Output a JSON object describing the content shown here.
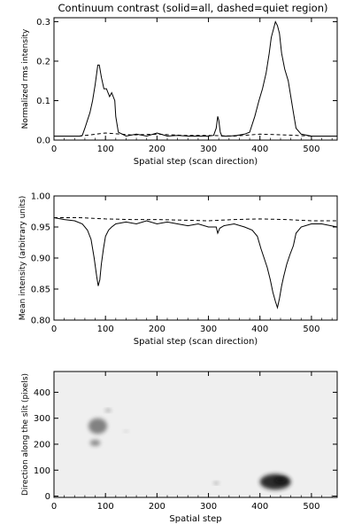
{
  "chart_data": [
    {
      "type": "line",
      "title": "Continuum contrast (solid=all, dashed=quiet region)",
      "xlabel": "Spatial step (scan direction)",
      "ylabel": "Normalized rms intensity",
      "xlim": [
        0,
        550
      ],
      "ylim": [
        0,
        0.31
      ],
      "xticks": [
        "0",
        "100",
        "200",
        "300",
        "400",
        "500"
      ],
      "yticks": [
        "0.0",
        "0.1",
        "0.2",
        "0.3"
      ],
      "xtick_values": [
        0,
        100,
        200,
        300,
        400,
        500
      ],
      "ytick_values": [
        0.0,
        0.1,
        0.2,
        0.3
      ],
      "series": [
        {
          "style": "solid",
          "x": [
            0,
            20,
            40,
            50,
            55,
            60,
            65,
            70,
            75,
            80,
            85,
            88,
            92,
            97,
            102,
            108,
            112,
            118,
            120,
            125,
            140,
            160,
            180,
            200,
            220,
            240,
            260,
            280,
            300,
            310,
            315,
            318,
            320,
            323,
            326,
            330,
            340,
            355,
            370,
            380,
            390,
            398,
            405,
            412,
            418,
            422,
            426,
            430,
            434,
            438,
            442,
            448,
            455,
            460,
            465,
            470,
            480,
            500,
            520,
            550
          ],
          "y": [
            0.01,
            0.01,
            0.01,
            0.01,
            0.012,
            0.03,
            0.05,
            0.07,
            0.1,
            0.14,
            0.19,
            0.19,
            0.16,
            0.13,
            0.13,
            0.11,
            0.12,
            0.1,
            0.06,
            0.02,
            0.01,
            0.015,
            0.01,
            0.018,
            0.01,
            0.012,
            0.01,
            0.01,
            0.01,
            0.012,
            0.03,
            0.06,
            0.05,
            0.02,
            0.01,
            0.01,
            0.01,
            0.012,
            0.015,
            0.02,
            0.06,
            0.1,
            0.13,
            0.17,
            0.22,
            0.26,
            0.28,
            0.3,
            0.29,
            0.27,
            0.22,
            0.18,
            0.15,
            0.11,
            0.07,
            0.03,
            0.015,
            0.01,
            0.01,
            0.01
          ]
        },
        {
          "style": "dashed",
          "x": [
            0,
            50,
            100,
            150,
            200,
            250,
            300,
            350,
            400,
            450,
            500,
            550
          ],
          "y": [
            0.01,
            0.01,
            0.018,
            0.013,
            0.015,
            0.012,
            0.012,
            0.01,
            0.015,
            0.013,
            0.01,
            0.01
          ]
        }
      ]
    },
    {
      "type": "line",
      "xlabel": "Spatial step (scan direction)",
      "ylabel": "Mean intensity (arbitrary units)",
      "xlim": [
        0,
        550
      ],
      "ylim": [
        0.8,
        1.0
      ],
      "xticks": [
        "0",
        "100",
        "200",
        "300",
        "400",
        "500"
      ],
      "yticks": [
        "0.80",
        "0.85",
        "0.90",
        "0.95",
        "1.00"
      ],
      "xtick_values": [
        0,
        100,
        200,
        300,
        400,
        500
      ],
      "ytick_values": [
        0.8,
        0.85,
        0.9,
        0.95,
        1.0
      ],
      "series": [
        {
          "style": "solid",
          "x": [
            0,
            20,
            40,
            55,
            65,
            72,
            78,
            83,
            86,
            89,
            92,
            96,
            100,
            106,
            112,
            120,
            140,
            160,
            180,
            200,
            220,
            240,
            260,
            280,
            300,
            315,
            318,
            322,
            330,
            350,
            370,
            385,
            395,
            402,
            408,
            414,
            420,
            425,
            430,
            434,
            438,
            442,
            446,
            452,
            458,
            465,
            470,
            480,
            500,
            520,
            550
          ],
          "y": [
            0.965,
            0.962,
            0.96,
            0.955,
            0.945,
            0.93,
            0.9,
            0.87,
            0.855,
            0.865,
            0.89,
            0.915,
            0.935,
            0.945,
            0.95,
            0.955,
            0.958,
            0.955,
            0.96,
            0.955,
            0.958,
            0.955,
            0.952,
            0.955,
            0.95,
            0.95,
            0.94,
            0.948,
            0.952,
            0.955,
            0.95,
            0.945,
            0.935,
            0.915,
            0.9,
            0.885,
            0.865,
            0.845,
            0.83,
            0.82,
            0.835,
            0.855,
            0.87,
            0.89,
            0.905,
            0.92,
            0.94,
            0.95,
            0.955,
            0.955,
            0.95
          ]
        },
        {
          "style": "dashed",
          "x": [
            0,
            50,
            100,
            150,
            200,
            250,
            300,
            350,
            400,
            450,
            500,
            550
          ],
          "y": [
            0.965,
            0.965,
            0.963,
            0.962,
            0.962,
            0.961,
            0.96,
            0.962,
            0.963,
            0.962,
            0.96,
            0.96
          ]
        }
      ]
    },
    {
      "type": "heatmap",
      "xlabel": "Spatial step",
      "ylabel": "Direction along the slit (pixels)",
      "xlim": [
        0,
        550
      ],
      "ylim": [
        -5,
        480
      ],
      "xticks": [
        "0",
        "100",
        "200",
        "300",
        "400",
        "500"
      ],
      "yticks": [
        "0",
        "100",
        "200",
        "300",
        "400"
      ],
      "xtick_values": [
        0,
        100,
        200,
        300,
        400,
        500
      ],
      "ytick_values": [
        0,
        100,
        200,
        300,
        400
      ],
      "colormap": "inverted grayscale",
      "features": [
        {
          "x": 430,
          "y": 55,
          "rx": 30,
          "ry": 30,
          "intensity": 0.9
        },
        {
          "x": 440,
          "y": 60,
          "rx": 12,
          "ry": 10,
          "intensity": 1.0
        },
        {
          "x": 85,
          "y": 270,
          "rx": 18,
          "ry": 30,
          "intensity": 0.5
        },
        {
          "x": 80,
          "y": 205,
          "rx": 10,
          "ry": 12,
          "intensity": 0.45
        },
        {
          "x": 105,
          "y": 330,
          "rx": 6,
          "ry": 6,
          "intensity": 0.35
        },
        {
          "x": 315,
          "y": 50,
          "rx": 5,
          "ry": 5,
          "intensity": 0.4
        },
        {
          "x": 140,
          "y": 250,
          "rx": 4,
          "ry": 4,
          "intensity": 0.2
        }
      ]
    }
  ]
}
